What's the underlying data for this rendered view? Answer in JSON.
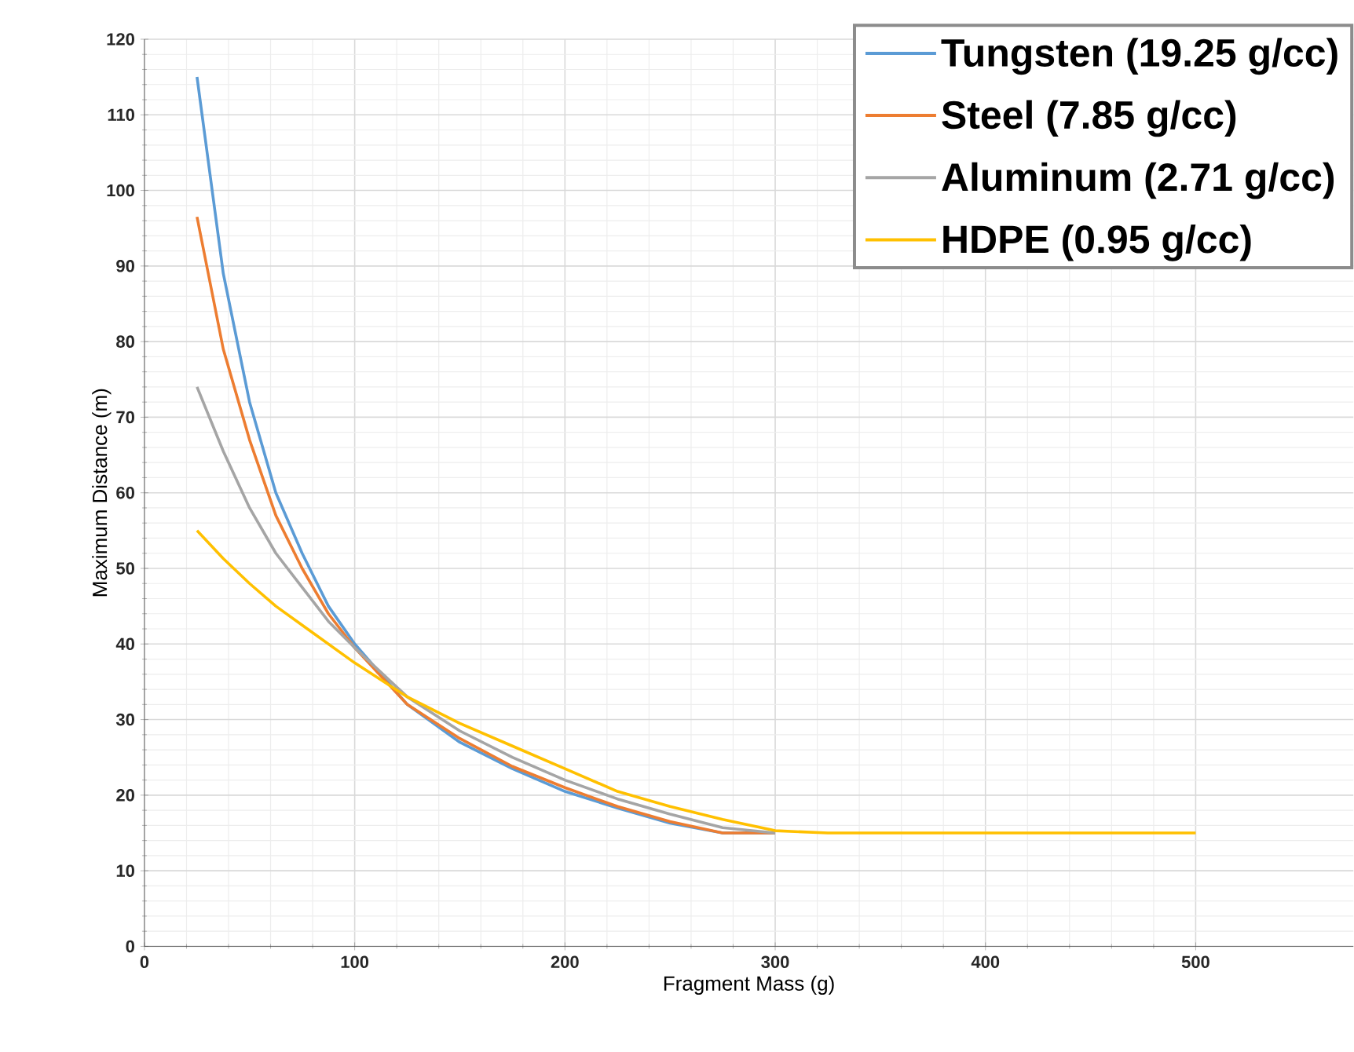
{
  "chart_data": {
    "type": "line",
    "xlabel": "Fragment Mass (g)",
    "ylabel": "Maximum Distance (m)",
    "x": [
      25,
      37.5,
      50,
      62.5,
      75,
      87.5,
      100,
      125,
      150,
      175,
      200,
      225,
      250,
      275,
      300,
      325,
      400,
      500
    ],
    "series": [
      {
        "name": "Tungsten (19.25 g/cc)",
        "color": "#5b9bd5",
        "values": [
          115,
          89,
          72,
          60,
          52,
          45,
          40,
          32,
          27,
          23.5,
          20.5,
          18.3,
          16.3,
          15,
          15,
          null,
          null,
          null
        ]
      },
      {
        "name": "Steel (7.85 g/cc)",
        "color": "#ed7d31",
        "values": [
          96.5,
          79,
          67,
          57,
          50,
          44,
          39.5,
          32,
          27.5,
          23.8,
          21,
          18.5,
          16.5,
          15,
          15,
          null,
          null,
          null
        ]
      },
      {
        "name": "Aluminum (2.71 g/cc)",
        "color": "#a5a5a5",
        "values": [
          74,
          65.5,
          58,
          52,
          47.5,
          43,
          39.5,
          33,
          28.5,
          25,
          22,
          19.5,
          17.5,
          15.7,
          15,
          null,
          null,
          null
        ]
      },
      {
        "name": "HDPE (0.95 g/cc)",
        "color": "#ffc000",
        "values": [
          55,
          51.3,
          48,
          45,
          42.5,
          40,
          37.5,
          33,
          29.5,
          26.5,
          23.5,
          20.5,
          18.5,
          16.8,
          15.3,
          15,
          15,
          15
        ]
      }
    ],
    "xlim": [
      0,
      575
    ],
    "ylim": [
      0,
      120
    ],
    "xticks": [
      0,
      100,
      200,
      300,
      400,
      500
    ],
    "yticks": [
      0,
      10,
      20,
      30,
      40,
      50,
      60,
      70,
      80,
      90,
      100,
      110,
      120
    ],
    "grid": true,
    "legend": "top right",
    "marker": "none",
    "line_style": "solid"
  }
}
